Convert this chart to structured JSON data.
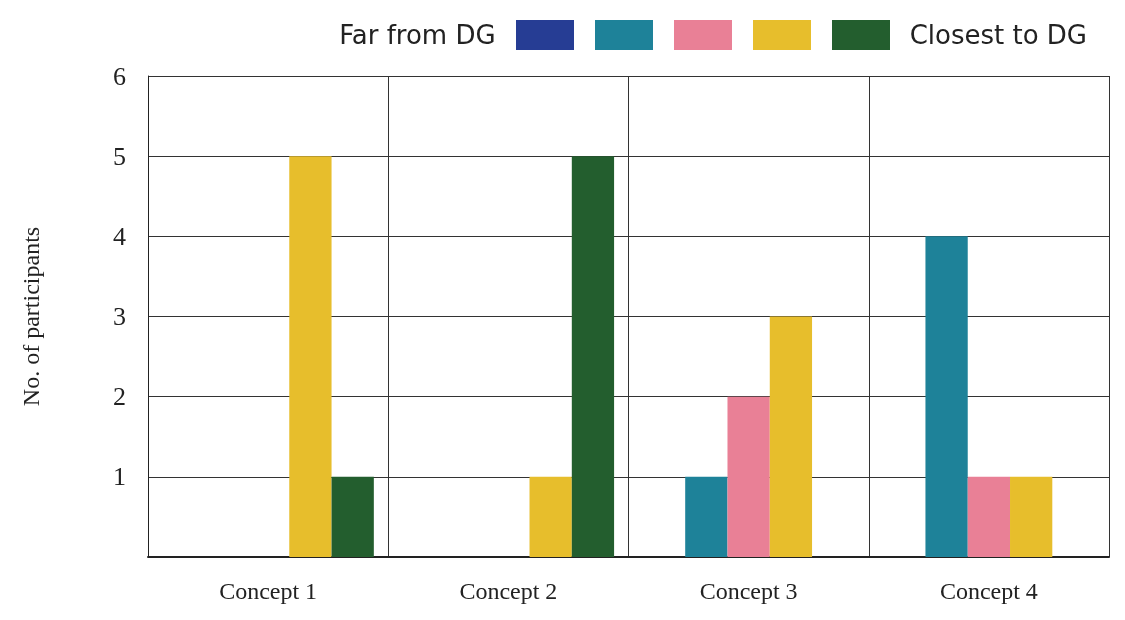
{
  "chart_data": {
    "type": "bar",
    "ylabel": "No. of participants",
    "categories": [
      "Concept 1",
      "Concept 2",
      "Concept 3",
      "Concept 4"
    ],
    "series": [
      {
        "color": "#263d94",
        "values": [
          0,
          0,
          0,
          0
        ]
      },
      {
        "color": "#1e8299",
        "values": [
          0,
          0,
          1,
          4
        ]
      },
      {
        "color": "#e98096",
        "values": [
          0,
          0,
          2,
          1
        ]
      },
      {
        "color": "#e7be2c",
        "values": [
          5,
          1,
          3,
          1
        ]
      },
      {
        "color": "#235e2e",
        "values": [
          1,
          5,
          0,
          0
        ]
      }
    ],
    "annotations": [
      "Far from DG",
      "Closest to DG"
    ],
    "ylim": [
      0,
      6
    ],
    "yticks": [
      {
        "value": 0,
        "label": null
      },
      1,
      2,
      3,
      4,
      5,
      6
    ],
    "grid": true
  }
}
